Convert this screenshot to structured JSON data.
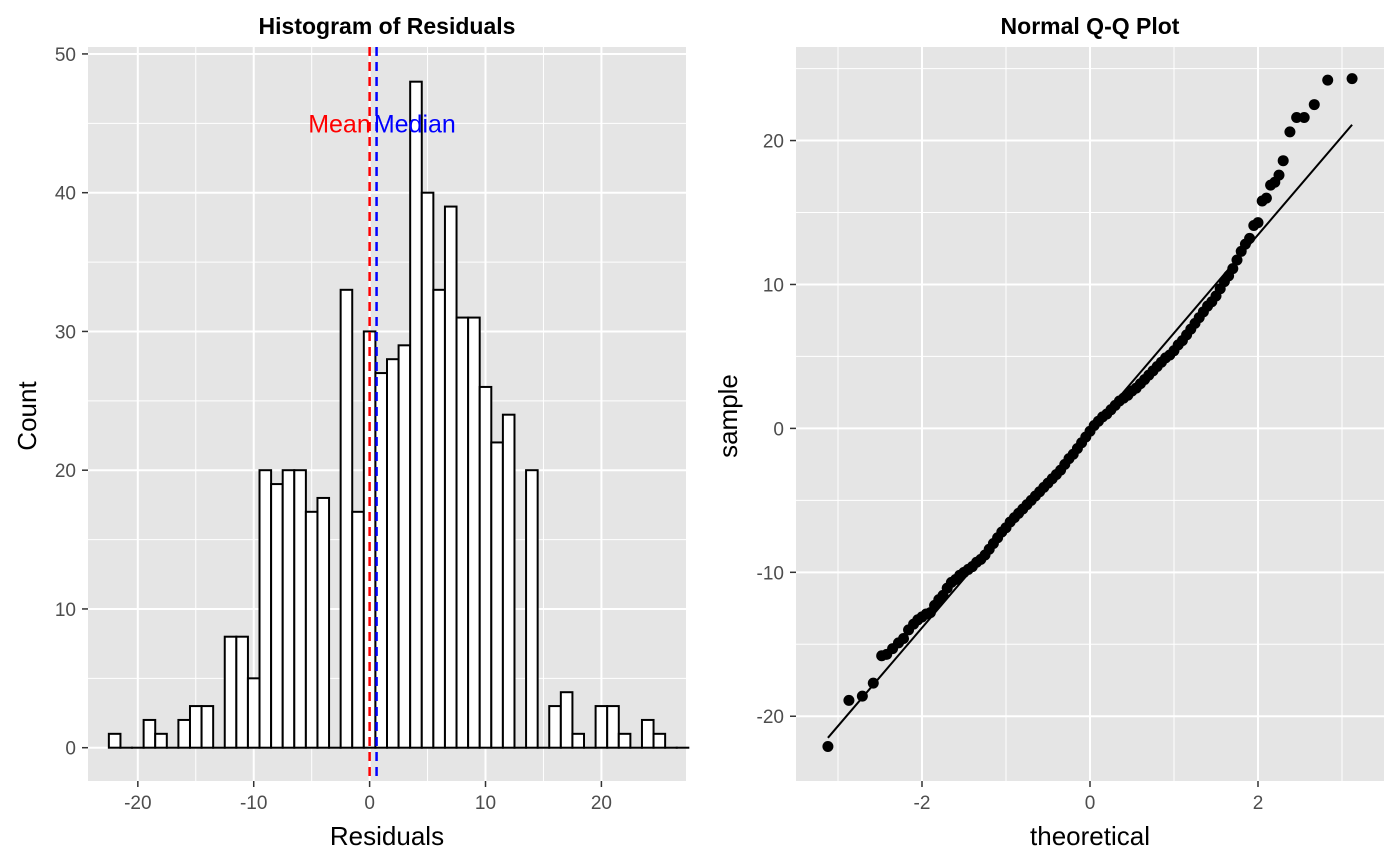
{
  "colors": {
    "panel_background": "#E5E5E5",
    "grid_major": "#FFFFFF",
    "bar_fill": "#FFFFFF",
    "bar_outline": "#000000",
    "mean_line": "#FF0000",
    "median_line": "#0000FF",
    "point": "#000000",
    "tick_text": "#4D4D4D"
  },
  "chart_data": [
    {
      "type": "histogram",
      "title": "Histogram of Residuals",
      "xlabel": "Residuals",
      "ylabel": "Count",
      "xlim": [
        -24.3,
        27.3
      ],
      "ylim": [
        -2.4,
        50.5
      ],
      "xticks": [
        -20,
        -10,
        0,
        10,
        20
      ],
      "yticks": [
        0,
        10,
        20,
        30,
        40,
        50
      ],
      "grid": true,
      "bin_width": 1,
      "bin_start": -22.5,
      "counts": [
        1,
        0,
        0,
        2,
        1,
        0,
        2,
        3,
        3,
        0,
        8,
        8,
        5,
        20,
        19,
        20,
        20,
        17,
        18,
        0,
        33,
        17,
        30,
        27,
        28,
        29,
        48,
        40,
        33,
        39,
        31,
        31,
        26,
        22,
        24,
        0,
        20,
        0,
        3,
        4,
        1,
        0,
        3,
        3,
        1,
        0,
        2,
        1,
        0,
        0
      ],
      "reference_lines": [
        {
          "name": "Mean",
          "x": 0.0,
          "style": "dashed",
          "color": "#FF0000"
        },
        {
          "name": "Median",
          "x": 0.6,
          "style": "dashed",
          "color": "#0000FF"
        }
      ],
      "annotations": [
        {
          "text": "Mean",
          "x": -2.6,
          "y": 45,
          "color": "#FF0000"
        },
        {
          "text": "Median",
          "x": 3.9,
          "y": 45,
          "color": "#0000FF"
        }
      ]
    },
    {
      "type": "scatter",
      "title": "Normal Q-Q Plot",
      "xlabel": "theoretical",
      "ylabel": "sample",
      "xlim": [
        -3.5,
        3.5
      ],
      "ylim": [
        -24.5,
        26.5
      ],
      "xticks": [
        -2,
        0,
        2
      ],
      "yticks": [
        -20,
        -10,
        0,
        10,
        20
      ],
      "grid": true,
      "reference_line": {
        "x": [
          -3.12,
          3.12
        ],
        "y": [
          -21.5,
          21.1
        ]
      },
      "points": [
        [
          -3.12,
          -22.1
        ],
        [
          -2.87,
          -18.9
        ],
        [
          -2.71,
          -18.6
        ],
        [
          -2.58,
          -17.7
        ],
        [
          -2.48,
          -15.8
        ],
        [
          -2.42,
          -15.7
        ],
        [
          -2.35,
          -15.3
        ],
        [
          -2.28,
          -14.9
        ],
        [
          -2.22,
          -14.6
        ],
        [
          -2.16,
          -14.0
        ],
        [
          -2.1,
          -13.6
        ],
        [
          -2.05,
          -13.3
        ],
        [
          -2.0,
          -13.1
        ],
        [
          -1.95,
          -12.9
        ],
        [
          -1.9,
          -12.8
        ],
        [
          -1.85,
          -12.3
        ],
        [
          -1.8,
          -11.9
        ],
        [
          -1.75,
          -11.6
        ],
        [
          -1.7,
          -11.1
        ],
        [
          -1.65,
          -10.7
        ],
        [
          -1.6,
          -10.5
        ],
        [
          -1.55,
          -10.2
        ],
        [
          -1.5,
          -10.0
        ],
        [
          -1.45,
          -9.8
        ],
        [
          -1.4,
          -9.6
        ],
        [
          -1.35,
          -9.3
        ],
        [
          -1.3,
          -9.1
        ],
        [
          -1.25,
          -8.8
        ],
        [
          -1.2,
          -8.4
        ],
        [
          -1.15,
          -8.0
        ],
        [
          -1.1,
          -7.6
        ],
        [
          -1.05,
          -7.2
        ],
        [
          -1.0,
          -6.9
        ],
        [
          -0.95,
          -6.5
        ],
        [
          -0.9,
          -6.2
        ],
        [
          -0.85,
          -5.9
        ],
        [
          -0.8,
          -5.6
        ],
        [
          -0.75,
          -5.3
        ],
        [
          -0.7,
          -5.0
        ],
        [
          -0.65,
          -4.7
        ],
        [
          -0.6,
          -4.4
        ],
        [
          -0.55,
          -4.1
        ],
        [
          -0.5,
          -3.8
        ],
        [
          -0.45,
          -3.5
        ],
        [
          -0.4,
          -3.2
        ],
        [
          -0.35,
          -2.9
        ],
        [
          -0.3,
          -2.5
        ],
        [
          -0.25,
          -2.1
        ],
        [
          -0.2,
          -1.8
        ],
        [
          -0.15,
          -1.4
        ],
        [
          -0.1,
          -1.0
        ],
        [
          -0.05,
          -0.6
        ],
        [
          0.0,
          -0.2
        ],
        [
          0.05,
          0.2
        ],
        [
          0.1,
          0.5
        ],
        [
          0.15,
          0.8
        ],
        [
          0.2,
          1.0
        ],
        [
          0.25,
          1.3
        ],
        [
          0.3,
          1.6
        ],
        [
          0.35,
          1.9
        ],
        [
          0.4,
          2.1
        ],
        [
          0.45,
          2.3
        ],
        [
          0.5,
          2.6
        ],
        [
          0.55,
          2.8
        ],
        [
          0.6,
          3.1
        ],
        [
          0.65,
          3.4
        ],
        [
          0.7,
          3.7
        ],
        [
          0.75,
          4.0
        ],
        [
          0.8,
          4.3
        ],
        [
          0.85,
          4.6
        ],
        [
          0.9,
          4.9
        ],
        [
          0.95,
          5.1
        ],
        [
          1.0,
          5.4
        ],
        [
          1.05,
          5.8
        ],
        [
          1.1,
          6.1
        ],
        [
          1.15,
          6.5
        ],
        [
          1.2,
          6.9
        ],
        [
          1.25,
          7.3
        ],
        [
          1.3,
          7.7
        ],
        [
          1.35,
          8.1
        ],
        [
          1.4,
          8.5
        ],
        [
          1.45,
          8.8
        ],
        [
          1.5,
          9.2
        ],
        [
          1.55,
          9.7
        ],
        [
          1.6,
          10.2
        ],
        [
          1.65,
          10.6
        ],
        [
          1.7,
          11.1
        ],
        [
          1.75,
          11.7
        ],
        [
          1.8,
          12.3
        ],
        [
          1.85,
          12.8
        ],
        [
          1.9,
          13.2
        ],
        [
          1.95,
          14.1
        ],
        [
          2.0,
          14.3
        ],
        [
          2.05,
          15.8
        ],
        [
          2.1,
          16.0
        ],
        [
          2.15,
          16.9
        ],
        [
          2.2,
          17.1
        ],
        [
          2.25,
          17.6
        ],
        [
          2.3,
          18.6
        ],
        [
          2.38,
          20.6
        ],
        [
          2.46,
          21.6
        ],
        [
          2.55,
          21.6
        ],
        [
          2.67,
          22.5
        ],
        [
          2.83,
          24.2
        ],
        [
          3.12,
          24.3
        ]
      ]
    }
  ]
}
